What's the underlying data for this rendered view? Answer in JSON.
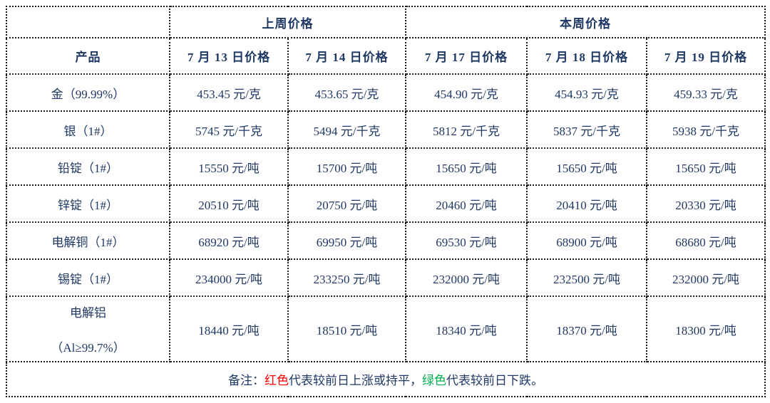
{
  "colors": {
    "up_or_flat": "#FF0000",
    "down": "#00B050",
    "body_text": "#1F3864",
    "week_divider_line": "#7f7f7f"
  },
  "table": {
    "group_headers": {
      "last_week": "上周价格",
      "this_week": "本周价格"
    },
    "product_header": "产品",
    "date_headers": [
      "7 月 13 日价格",
      "7 月 14 日价格",
      "7 月 17 日价格",
      "7 月 18 日价格",
      "7 月 19 日价格"
    ],
    "rows": [
      {
        "product": "金（99.99%）",
        "prices": [
          {
            "value": "453.45",
            "unit": "元/克",
            "color": "red"
          },
          {
            "value": "453.65",
            "unit": "元/克",
            "color": "red"
          },
          {
            "value": "454.90",
            "unit": "元/克",
            "color": "red"
          },
          {
            "value": "454.93",
            "unit": "元/克",
            "color": "red"
          },
          {
            "value": "459.33",
            "unit": "元/克",
            "color": "red"
          }
        ]
      },
      {
        "product": "银（1#）",
        "prices": [
          {
            "value": "5745",
            "unit": "元/千克",
            "color": "red"
          },
          {
            "value": "5494",
            "unit": "元/千克",
            "color": "green"
          },
          {
            "value": "5812",
            "unit": "元/千克",
            "color": "red"
          },
          {
            "value": "5837",
            "unit": "元/千克",
            "color": "red"
          },
          {
            "value": "5938",
            "unit": "元/千克",
            "color": "red"
          }
        ]
      },
      {
        "product": "铅锭（1#）",
        "prices": [
          {
            "value": "15550",
            "unit": "元/吨",
            "color": "red"
          },
          {
            "value": "15700",
            "unit": "元/吨",
            "color": "red"
          },
          {
            "value": "15650",
            "unit": "元/吨",
            "color": "green"
          },
          {
            "value": "15650",
            "unit": "元/吨",
            "color": "red"
          },
          {
            "value": "15650",
            "unit": "元/吨",
            "color": "red"
          }
        ]
      },
      {
        "product": "锌锭（1#）",
        "prices": [
          {
            "value": "20510",
            "unit": "元/吨",
            "color": "red"
          },
          {
            "value": "20750",
            "unit": "元/吨",
            "color": "red"
          },
          {
            "value": "20460",
            "unit": "元/吨",
            "color": "green"
          },
          {
            "value": "20410",
            "unit": "元/吨",
            "color": "green"
          },
          {
            "value": "20330",
            "unit": "元/吨",
            "color": "green"
          }
        ]
      },
      {
        "product": "电解铜（1#）",
        "prices": [
          {
            "value": "68920",
            "unit": "元/吨",
            "color": "red"
          },
          {
            "value": "69950",
            "unit": "元/吨",
            "color": "red"
          },
          {
            "value": "69530",
            "unit": "元/吨",
            "color": "green"
          },
          {
            "value": "68900",
            "unit": "元/吨",
            "color": "green"
          },
          {
            "value": "68680",
            "unit": "元/吨",
            "color": "green"
          }
        ]
      },
      {
        "product": "锡锭（1#）",
        "prices": [
          {
            "value": "234000",
            "unit": "元/吨",
            "color": "red"
          },
          {
            "value": "233250",
            "unit": "元/吨",
            "color": "green"
          },
          {
            "value": "232000",
            "unit": "元/吨",
            "color": "green"
          },
          {
            "value": "232500",
            "unit": "元/吨",
            "color": "red"
          },
          {
            "value": "232000",
            "unit": "元/吨",
            "color": "green"
          }
        ]
      },
      {
        "product": "电解铝",
        "product_line2": "（Al≥99.7%）",
        "prices": [
          {
            "value": "18440",
            "unit": "元/吨",
            "color": "red"
          },
          {
            "value": "18510",
            "unit": "元/吨",
            "color": "red"
          },
          {
            "value": "18340",
            "unit": "元/吨",
            "color": "green"
          },
          {
            "value": "18370",
            "unit": "元/吨",
            "color": "red"
          },
          {
            "value": "18300",
            "unit": "元/吨",
            "color": "green"
          }
        ]
      }
    ],
    "note": {
      "prefix": "备注：",
      "red_label": "红色",
      "red_text": "代表较前日上涨或持平，",
      "green_label": "绿色",
      "green_text": "代表较前日下跌。"
    }
  }
}
